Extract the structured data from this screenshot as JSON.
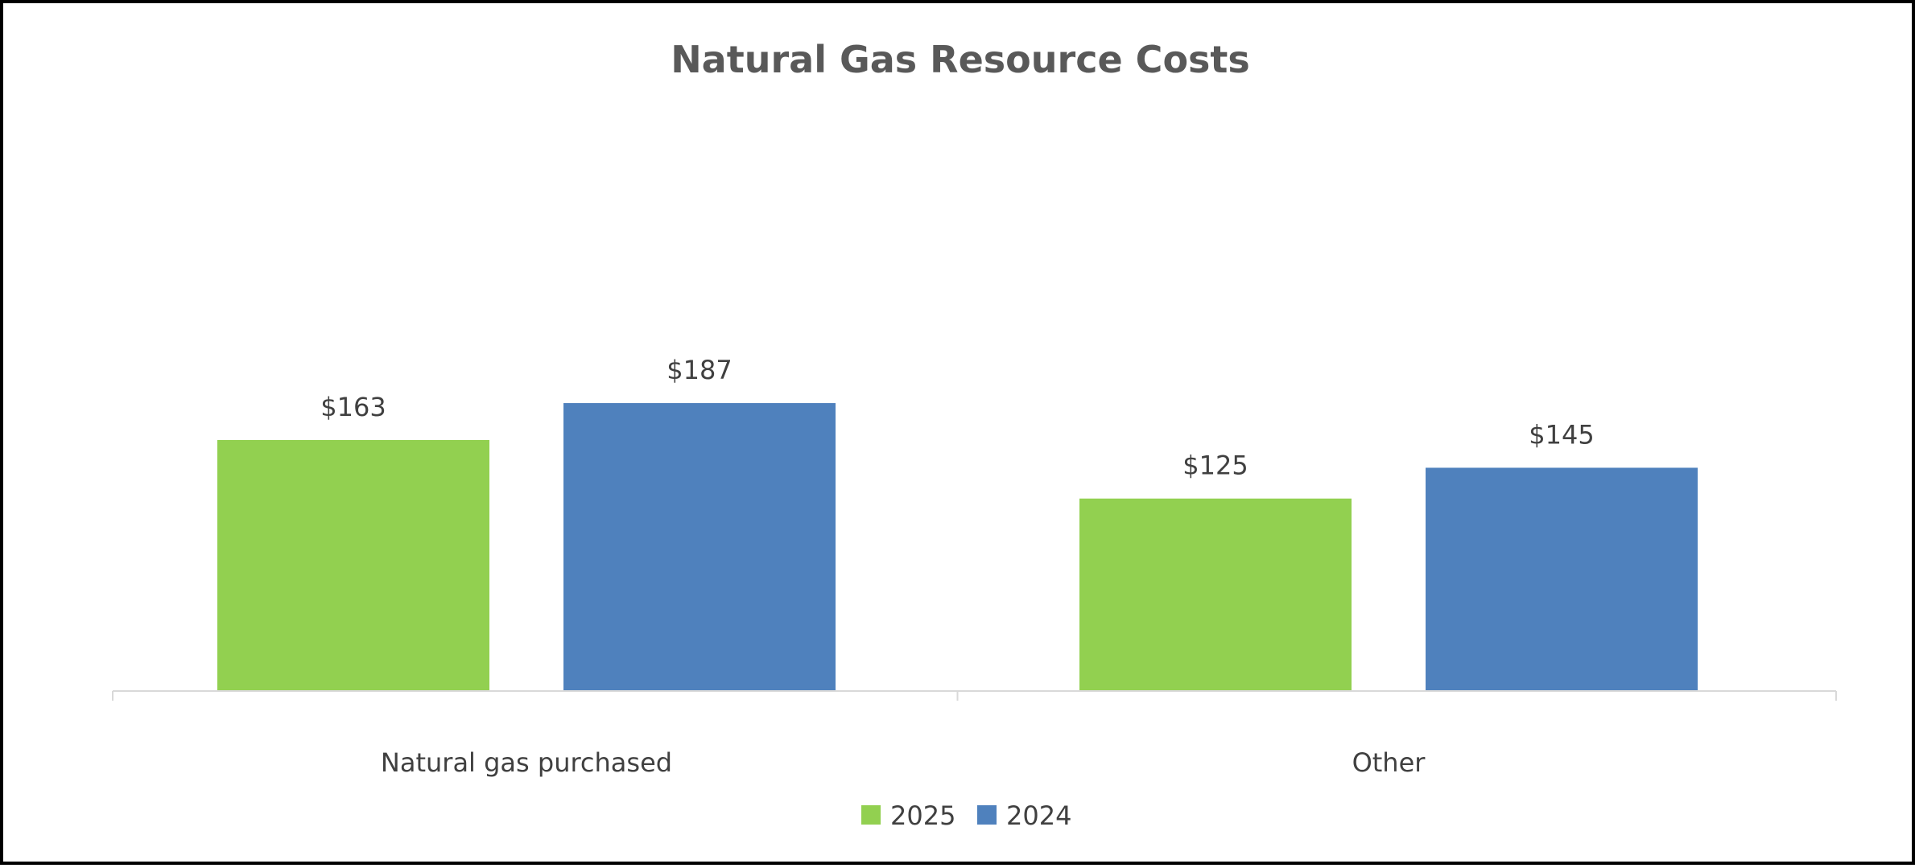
{
  "chart_data": {
    "type": "bar",
    "title": "Natural Gas Resource Costs",
    "xlabel": "",
    "ylabel": "",
    "categories": [
      "Natural gas purchased",
      "Other"
    ],
    "series": [
      {
        "name": "2025",
        "values": [
          163,
          125
        ],
        "labels": [
          "$163",
          "$125"
        ],
        "color": "#92D050"
      },
      {
        "name": "2024",
        "values": [
          187,
          145
        ],
        "labels": [
          "$187",
          "$145"
        ],
        "color": "#4F81BD"
      }
    ],
    "ylim": [
      0,
      400
    ],
    "grid": false,
    "legend": "bottom"
  }
}
